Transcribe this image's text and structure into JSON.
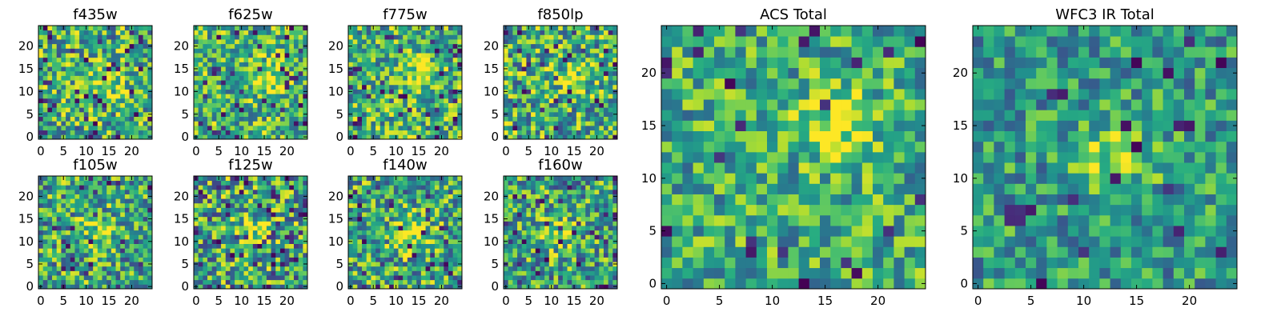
{
  "figure": {
    "colormap": "viridis",
    "background": "#ffffff"
  },
  "chart_data": [
    {
      "type": "heatmap",
      "title": "f435w",
      "xlim": [
        0,
        25
      ],
      "ylim": [
        0,
        25
      ],
      "grid_size": 25,
      "xticks": [
        "0",
        "5",
        "10",
        "15",
        "20"
      ],
      "yticks": [
        "0",
        "5",
        "10",
        "15",
        "20"
      ],
      "seed": 11,
      "hotspot": [
        15,
        13
      ],
      "bias": 0.62,
      "noise": 0.38,
      "dark_fraction": 0.06
    },
    {
      "type": "heatmap",
      "title": "f625w",
      "xlim": [
        0,
        25
      ],
      "ylim": [
        0,
        25
      ],
      "grid_size": 25,
      "xticks": [
        "0",
        "5",
        "10",
        "15",
        "20"
      ],
      "yticks": [
        "0",
        "5",
        "10",
        "15",
        "20"
      ],
      "seed": 23,
      "hotspot": [
        16,
        13
      ],
      "bias": 0.66,
      "noise": 0.34,
      "dark_fraction": 0.06
    },
    {
      "type": "heatmap",
      "title": "f775w",
      "xlim": [
        0,
        25
      ],
      "ylim": [
        0,
        25
      ],
      "grid_size": 25,
      "xticks": [
        "0",
        "5",
        "10",
        "15",
        "20"
      ],
      "yticks": [
        "0",
        "5",
        "10",
        "15",
        "20"
      ],
      "seed": 37,
      "hotspot": [
        16,
        14
      ],
      "bias": 0.64,
      "noise": 0.36,
      "dark_fraction": 0.06
    },
    {
      "type": "heatmap",
      "title": "f850lp",
      "xlim": [
        0,
        25
      ],
      "ylim": [
        0,
        25
      ],
      "grid_size": 25,
      "xticks": [
        "0",
        "5",
        "10",
        "15",
        "20"
      ],
      "yticks": [
        "0",
        "5",
        "10",
        "15",
        "20"
      ],
      "seed": 41,
      "hotspot": [
        15,
        13
      ],
      "bias": 0.62,
      "noise": 0.38,
      "dark_fraction": 0.07
    },
    {
      "type": "heatmap",
      "title": "f105w",
      "xlim": [
        0,
        25
      ],
      "ylim": [
        0,
        25
      ],
      "grid_size": 25,
      "xticks": [
        "0",
        "5",
        "10",
        "15",
        "20"
      ],
      "yticks": [
        "0",
        "5",
        "10",
        "15",
        "20"
      ],
      "seed": 53,
      "hotspot": [
        13,
        12
      ],
      "bias": 0.6,
      "noise": 0.38,
      "dark_fraction": 0.05
    },
    {
      "type": "heatmap",
      "title": "f125w",
      "xlim": [
        0,
        25
      ],
      "ylim": [
        0,
        25
      ],
      "grid_size": 25,
      "xticks": [
        "0",
        "5",
        "10",
        "15",
        "20"
      ],
      "yticks": [
        "0",
        "5",
        "10",
        "15",
        "20"
      ],
      "seed": 67,
      "hotspot": [
        13,
        12
      ],
      "bias": 0.6,
      "noise": 0.4,
      "dark_fraction": 0.08
    },
    {
      "type": "heatmap",
      "title": "f140w",
      "xlim": [
        0,
        25
      ],
      "ylim": [
        0,
        25
      ],
      "grid_size": 25,
      "xticks": [
        "0",
        "5",
        "10",
        "15",
        "20"
      ],
      "yticks": [
        "0",
        "5",
        "10",
        "15",
        "20"
      ],
      "seed": 79,
      "hotspot": [
        13,
        12
      ],
      "bias": 0.6,
      "noise": 0.38,
      "dark_fraction": 0.06
    },
    {
      "type": "heatmap",
      "title": "f160w",
      "xlim": [
        0,
        25
      ],
      "ylim": [
        0,
        25
      ],
      "grid_size": 25,
      "xticks": [
        "0",
        "5",
        "10",
        "15",
        "20"
      ],
      "yticks": [
        "0",
        "5",
        "10",
        "15",
        "20"
      ],
      "seed": 83,
      "hotspot": [
        12,
        12
      ],
      "bias": 0.58,
      "noise": 0.38,
      "dark_fraction": 0.06
    },
    {
      "type": "heatmap",
      "title": "ACS Total",
      "xlim": [
        0,
        25
      ],
      "ylim": [
        0,
        25
      ],
      "grid_size": 25,
      "xticks": [
        "0",
        "5",
        "10",
        "15",
        "20"
      ],
      "yticks": [
        "0",
        "5",
        "10",
        "15",
        "20"
      ],
      "seed": 97,
      "hotspot": [
        16,
        15
      ],
      "bias": 0.62,
      "noise": 0.3,
      "dark_fraction": 0.04
    },
    {
      "type": "heatmap",
      "title": "WFC3 IR Total",
      "xlim": [
        0,
        25
      ],
      "ylim": [
        0,
        25
      ],
      "grid_size": 25,
      "xticks": [
        "0",
        "5",
        "10",
        "15",
        "20"
      ],
      "yticks": [
        "0",
        "5",
        "10",
        "15",
        "20"
      ],
      "seed": 101,
      "hotspot": [
        13,
        12
      ],
      "bias": 0.55,
      "noise": 0.28,
      "dark_fraction": 0.04
    }
  ]
}
